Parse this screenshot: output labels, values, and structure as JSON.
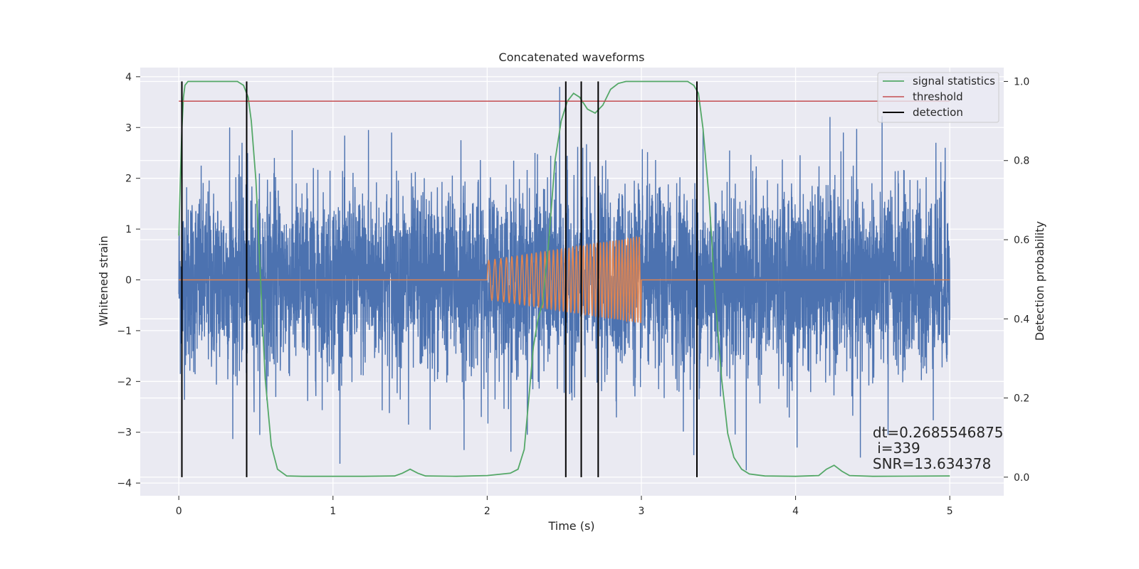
{
  "chart_data": {
    "type": "line",
    "title": "Concatenated waveforms",
    "xlabel": "Time (s)",
    "ylabel": "Whitened strain",
    "y2label": "Detection probability",
    "xlim": [
      -0.25,
      5.35
    ],
    "ylim": [
      -4.25,
      4.18
    ],
    "y2lim": [
      -0.047,
      1.035
    ],
    "x_ticks": [
      0,
      1,
      2,
      3,
      4,
      5
    ],
    "y_ticks": [
      -4,
      -3,
      -2,
      -1,
      0,
      1,
      2,
      3,
      4
    ],
    "y2_ticks": [
      0.0,
      0.2,
      0.4,
      0.6,
      0.8,
      1.0
    ],
    "grid": true,
    "legend_position": "upper right",
    "series": [
      {
        "name": "",
        "axis": "left",
        "color": "#4c72b0",
        "kind": "noise",
        "x_range": [
          0,
          5
        ],
        "std": 0.9,
        "max_abs": 3.8,
        "peak_values": [
          {
            "x": 0.33,
            "y": 3.0
          },
          {
            "x": 0.41,
            "y": 2.7
          },
          {
            "x": 0.62,
            "y": 2.4
          },
          {
            "x": 1.23,
            "y": 2.95
          },
          {
            "x": 1.38,
            "y": 2.9
          },
          {
            "x": 1.83,
            "y": 2.75
          },
          {
            "x": 2.31,
            "y": 2.5
          },
          {
            "x": 2.47,
            "y": 3.8
          },
          {
            "x": 2.62,
            "y": 2.6
          },
          {
            "x": 3.4,
            "y": 2.95
          },
          {
            "x": 4.31,
            "y": 2.9
          },
          {
            "x": 4.91,
            "y": 2.7
          },
          {
            "x": 4.97,
            "y": 2.6
          },
          {
            "x": 1.49,
            "y": -2.85
          },
          {
            "x": 1.63,
            "y": -2.95
          },
          {
            "x": 1.85,
            "y": -3.35
          },
          {
            "x": 2.26,
            "y": -3.05
          },
          {
            "x": 2.72,
            "y": -3.45
          },
          {
            "x": 3.34,
            "y": -3.45
          },
          {
            "x": 3.68,
            "y": -3.75
          },
          {
            "x": 4.01,
            "y": -3.3
          },
          {
            "x": 4.42,
            "y": -3.5
          },
          {
            "x": 4.6,
            "y": -3.05
          }
        ]
      },
      {
        "name": "",
        "axis": "left",
        "color": "#dd8452",
        "kind": "chirp",
        "x": [
          0,
          2.0,
          3.0,
          5.0
        ],
        "amplitude_start": 0.38,
        "amplitude_end": 0.85,
        "cycles_approx": 40
      },
      {
        "name": "signal statistics",
        "axis": "right",
        "color": "#55a868",
        "x": [
          0,
          0.01,
          0.02,
          0.03,
          0.04,
          0.06,
          0.1,
          0.2,
          0.3,
          0.38,
          0.42,
          0.45,
          0.47,
          0.5,
          0.53,
          0.56,
          0.6,
          0.64,
          0.7,
          0.8,
          1.0,
          1.2,
          1.4,
          1.45,
          1.5,
          1.55,
          1.6,
          1.8,
          2.0,
          2.15,
          2.2,
          2.24,
          2.27,
          2.3,
          2.33,
          2.36,
          2.4,
          2.44,
          2.48,
          2.52,
          2.56,
          2.6,
          2.65,
          2.7,
          2.75,
          2.8,
          2.85,
          2.9,
          3.0,
          3.2,
          3.3,
          3.34,
          3.37,
          3.4,
          3.44,
          3.48,
          3.52,
          3.56,
          3.6,
          3.65,
          3.7,
          3.8,
          4.0,
          4.15,
          4.2,
          4.25,
          4.3,
          4.35,
          4.5,
          5.0
        ],
        "values": [
          0.61,
          0.75,
          0.88,
          0.96,
          0.99,
          1.0,
          1.0,
          1.0,
          1.0,
          1.0,
          0.99,
          0.96,
          0.9,
          0.75,
          0.5,
          0.25,
          0.08,
          0.02,
          0.003,
          0.002,
          0.002,
          0.002,
          0.003,
          0.01,
          0.02,
          0.01,
          0.003,
          0.002,
          0.004,
          0.01,
          0.02,
          0.07,
          0.2,
          0.33,
          0.4,
          0.44,
          0.6,
          0.8,
          0.9,
          0.95,
          0.97,
          0.96,
          0.93,
          0.92,
          0.94,
          0.98,
          0.995,
          1.0,
          1.0,
          1.0,
          1.0,
          0.99,
          0.97,
          0.88,
          0.7,
          0.45,
          0.25,
          0.11,
          0.05,
          0.02,
          0.008,
          0.003,
          0.002,
          0.004,
          0.02,
          0.03,
          0.015,
          0.004,
          0.002,
          0.003
        ]
      },
      {
        "name": "threshold",
        "axis": "right",
        "color": "#c44e52",
        "x": [
          0,
          5
        ],
        "values": [
          0.95,
          0.95
        ]
      },
      {
        "name": "detection",
        "axis": "right",
        "color": "#000000",
        "kind": "vlines",
        "x": [
          0.02,
          0.44,
          2.51,
          2.61,
          2.72,
          3.36
        ],
        "ymin": 0.0,
        "ymax": 1.0
      }
    ],
    "annotations": [
      {
        "x": 4.5,
        "y": 0.1,
        "lines": [
          "dt=0.2685546875",
          " i=339",
          "SNR=13.634378"
        ]
      }
    ]
  }
}
